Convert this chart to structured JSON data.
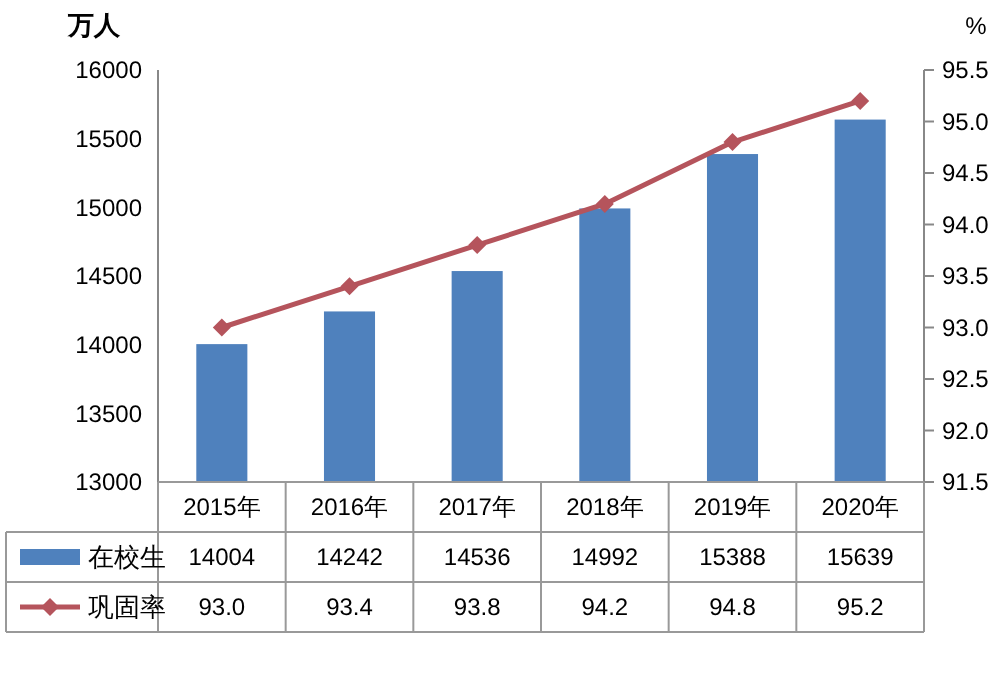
{
  "chart_data": {
    "type": "bar",
    "categories": [
      "2015年",
      "2016年",
      "2017年",
      "2018年",
      "2019年",
      "2020年"
    ],
    "ylabel": "万人",
    "y2label": "%",
    "series": [
      {
        "name": "在校生",
        "color": "#4f81bd",
        "values": [
          14004,
          14242,
          14536,
          14992,
          15388,
          15639
        ],
        "value_labels": [
          "14004",
          "14242",
          "14536",
          "14992",
          "15388",
          "15639"
        ]
      },
      {
        "name": "巩固率",
        "type": "line",
        "axis": "y2",
        "color": "#b5545c",
        "marker": "diamond",
        "values": [
          93.0,
          93.4,
          93.8,
          94.2,
          94.8,
          95.2
        ],
        "value_labels": [
          "93.0",
          "93.4",
          "93.8",
          "94.2",
          "94.8",
          "95.2"
        ]
      }
    ],
    "ylim": [
      13000,
      16000
    ],
    "yticks": [
      13000,
      13500,
      14000,
      14500,
      15000,
      15500,
      16000
    ],
    "y2lim": [
      91.5,
      95.5
    ],
    "y2ticks": [
      {
        "value": 91.5,
        "label": "91.5"
      },
      {
        "value": 92,
        "label": "92.0"
      },
      {
        "value": 92.5,
        "label": "92.5"
      },
      {
        "value": 93,
        "label": "93.0"
      },
      {
        "value": 93.5,
        "label": "93.5"
      },
      {
        "value": 94,
        "label": "94.0"
      },
      {
        "value": 94.5,
        "label": "94.5"
      },
      {
        "value": 95,
        "label": "95.0"
      },
      {
        "value": 95.5,
        "label": "95.5"
      }
    ],
    "legend": "bottom",
    "grid": false
  }
}
